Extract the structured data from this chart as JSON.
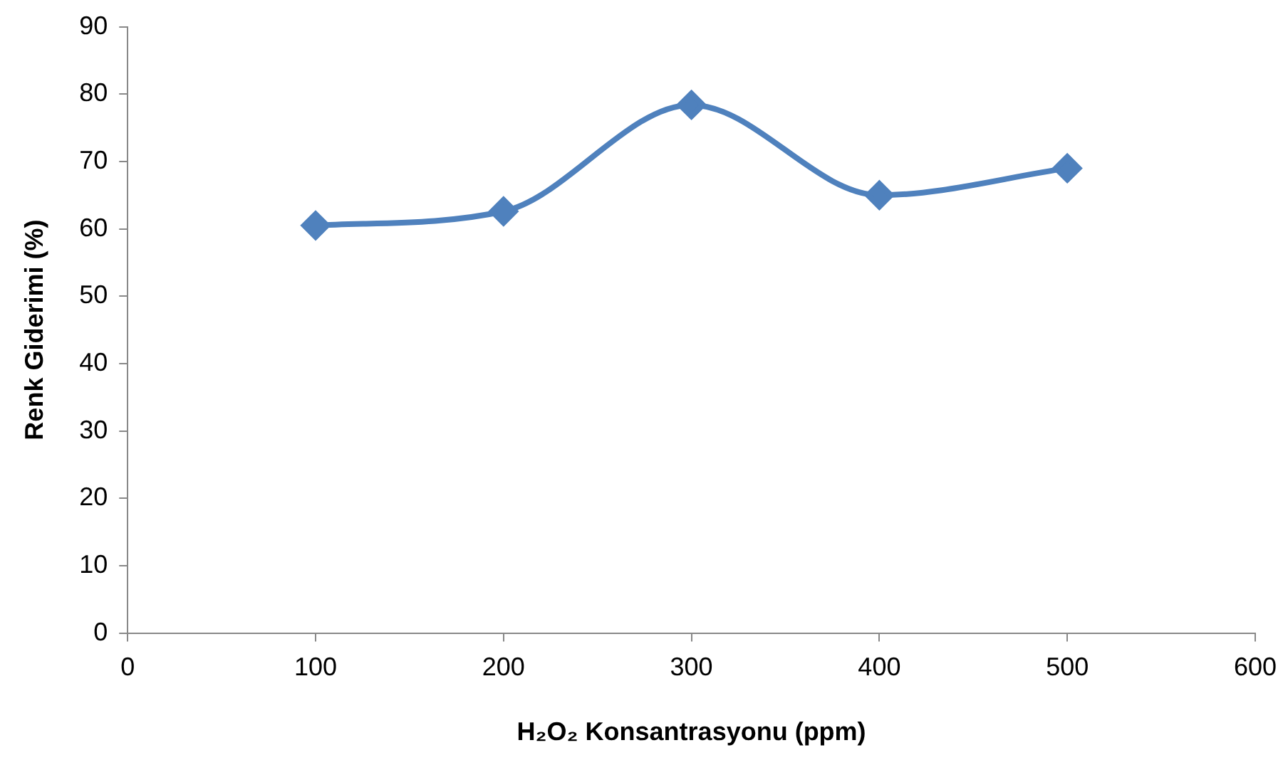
{
  "chart_data": {
    "type": "line",
    "xlabel": "H₂O₂ Konsantrasyonu (ppm)",
    "ylabel": "Renk Giderimi (%)",
    "x": [
      100,
      200,
      300,
      400,
      500
    ],
    "series": [
      {
        "color": "#4f81bd",
        "values": [
          60.5,
          62.6,
          78.4,
          65.0,
          69.0
        ]
      }
    ],
    "xlim": [
      0,
      600
    ],
    "xticks": [
      0,
      100,
      200,
      300,
      400,
      500,
      600
    ],
    "ylim": [
      0,
      90
    ],
    "yticks": [
      0,
      10,
      20,
      30,
      40,
      50,
      60,
      70,
      80,
      90
    ],
    "grid": false,
    "legend": false,
    "marker": "diamond",
    "line_style": "solid"
  }
}
